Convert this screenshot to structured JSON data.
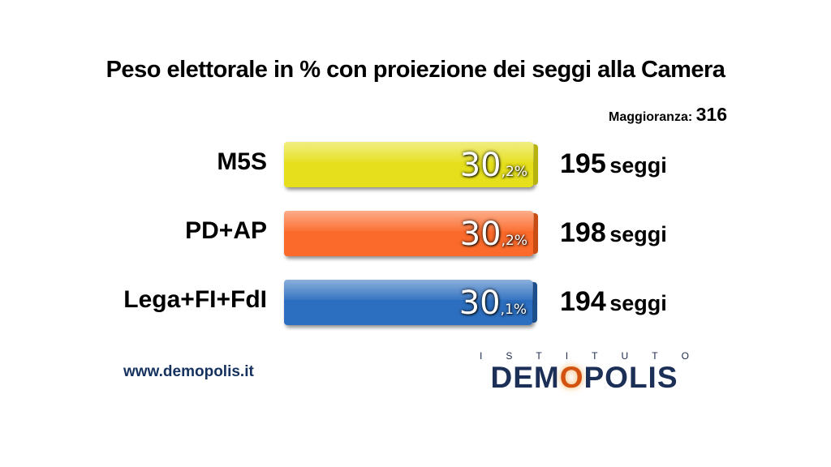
{
  "title": "Peso elettorale in % con proiezione dei seggi alla Camera",
  "majority": {
    "label": "Maggioranza:",
    "value": "316"
  },
  "chart_data": {
    "type": "bar",
    "orientation": "horizontal",
    "title": "Peso elettorale in % con proiezione dei seggi alla Camera",
    "categories": [
      "M5S",
      "PD+AP",
      "Lega+FI+FdI"
    ],
    "values": [
      30.2,
      30.2,
      30.1
    ],
    "value_labels": [
      {
        "int": "30",
        "dec": ",2%"
      },
      {
        "int": "30",
        "dec": ",2%"
      },
      {
        "int": "30",
        "dec": ",1%"
      }
    ],
    "seats": [
      {
        "number": "195",
        "unit": "seggi"
      },
      {
        "number": "198",
        "unit": "seggi"
      },
      {
        "number": "194",
        "unit": "seggi"
      }
    ],
    "colors": [
      "#e6e01c",
      "#fb6a2a",
      "#2c6ebf"
    ],
    "side_colors": [
      "#b8b20e",
      "#c94c14",
      "#1d4f8d"
    ]
  },
  "footer": {
    "website": "www.demopolis.it",
    "logo_top": [
      "I",
      "S",
      "T",
      "I",
      "T",
      "U",
      "T",
      "O"
    ],
    "logo_text_a": "DEM",
    "logo_text_o": "O",
    "logo_text_b": "POLIS"
  }
}
